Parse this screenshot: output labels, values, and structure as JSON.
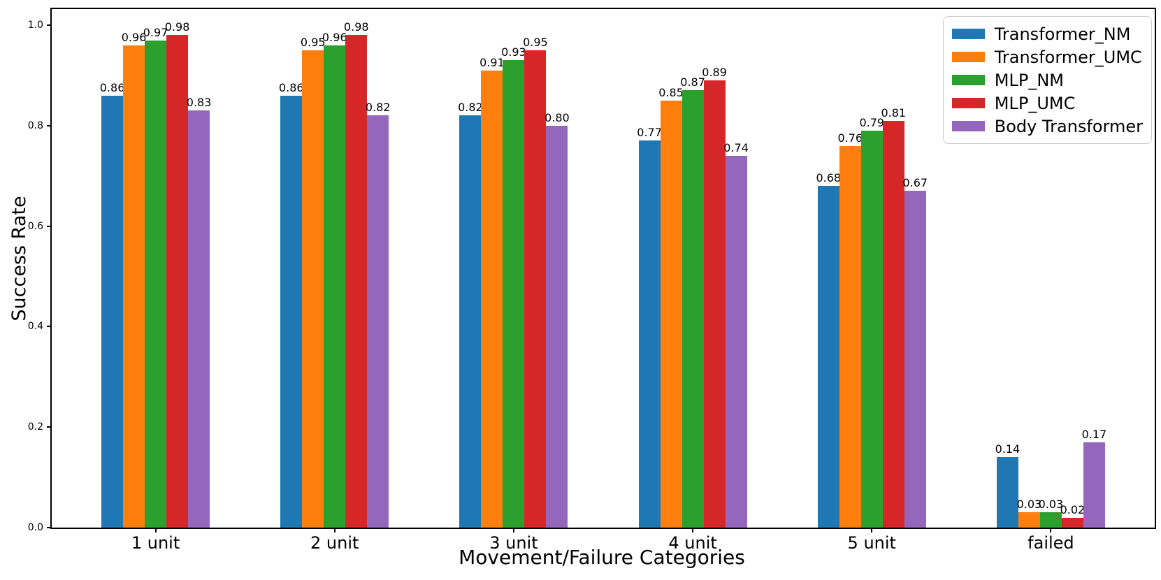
{
  "chart_data": {
    "type": "bar",
    "title": "",
    "xlabel": "Movement/Failure Categories",
    "ylabel": "Success Rate",
    "categories": [
      "1 unit",
      "2 unit",
      "3 unit",
      "4 unit",
      "5 unit",
      "failed"
    ],
    "series": [
      {
        "name": "Transformer_NM",
        "color": "#1f77b4",
        "values": [
          0.86,
          0.86,
          0.82,
          0.77,
          0.68,
          0.14
        ]
      },
      {
        "name": "Transformer_UMC",
        "color": "#ff7f0e",
        "values": [
          0.96,
          0.95,
          0.91,
          0.85,
          0.76,
          0.03
        ]
      },
      {
        "name": "MLP_NM",
        "color": "#2ca02c",
        "values": [
          0.97,
          0.96,
          0.93,
          0.87,
          0.79,
          0.03
        ]
      },
      {
        "name": "MLP_UMC",
        "color": "#d62728",
        "values": [
          0.98,
          0.98,
          0.95,
          0.89,
          0.81,
          0.02
        ]
      },
      {
        "name": "Body Transformer",
        "color": "#9467bd",
        "values": [
          0.83,
          0.82,
          0.8,
          0.74,
          0.67,
          0.17
        ]
      }
    ],
    "y_ticks": [
      "0.0",
      "0.2",
      "0.4",
      "0.6",
      "0.8",
      "1.0"
    ],
    "ylim": [
      0,
      1.032
    ],
    "bar_labels": true,
    "bar_label_decimals": 2,
    "legend_position": "upper right",
    "grid": false,
    "spine_color": "#000000",
    "legend_border_color": "#cccccc"
  }
}
